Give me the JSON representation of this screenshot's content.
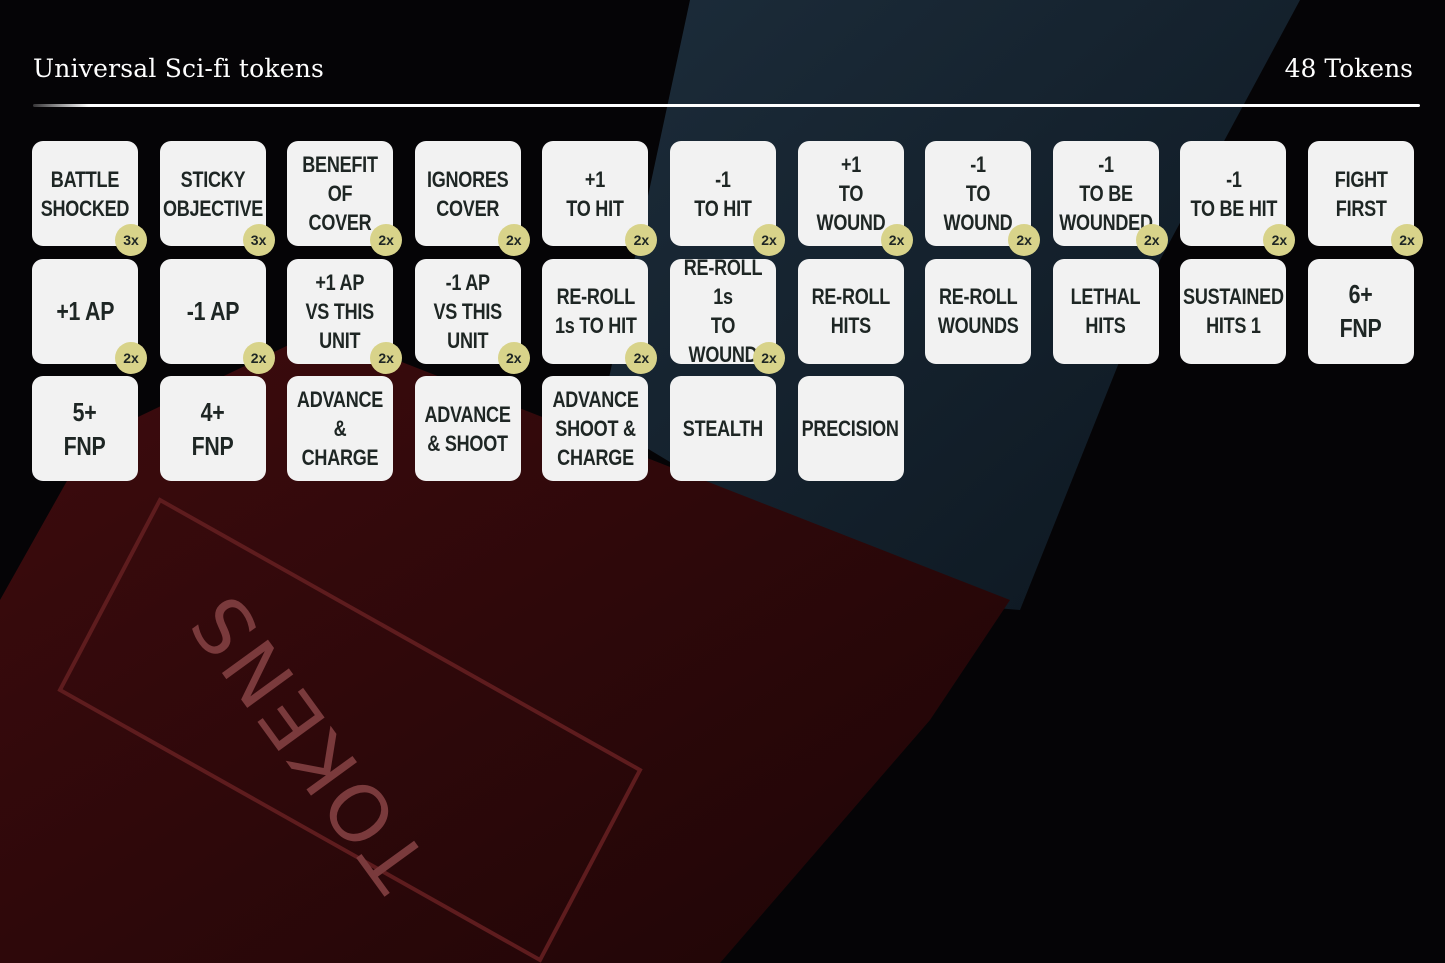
{
  "header": {
    "title": "Universal Sci-fi tokens",
    "count": "48 Tokens"
  },
  "background": {
    "word": "TOKENS"
  },
  "colors": {
    "token_bg": "#f2f2f2",
    "badge": "#d8d38a",
    "text": "#1e2624"
  },
  "tokens": [
    {
      "label": "BATTLE\nSHOCKED",
      "qty": "3x"
    },
    {
      "label": "STICKY\nOBJECTIVE",
      "qty": "3x"
    },
    {
      "label": "BENEFIT\nOF COVER",
      "qty": "2x"
    },
    {
      "label": "IGNORES\nCOVER",
      "qty": "2x"
    },
    {
      "label": "+1\nTO HIT",
      "qty": "2x"
    },
    {
      "label": "-1\nTO HIT",
      "qty": "2x"
    },
    {
      "label": "+1\nTO WOUND",
      "qty": "2x"
    },
    {
      "label": "-1\nTO WOUND",
      "qty": "2x"
    },
    {
      "label": "-1\nTO BE\nWOUNDED",
      "qty": "2x"
    },
    {
      "label": "-1\nTO BE HIT",
      "qty": "2x"
    },
    {
      "label": "FIGHT\nFIRST",
      "qty": "2x"
    },
    {
      "label": "+1 AP",
      "qty": "2x",
      "big": true
    },
    {
      "label": "-1 AP",
      "qty": "2x",
      "big": true
    },
    {
      "label": "+1 AP\nVS THIS\nUNIT",
      "qty": "2x"
    },
    {
      "label": "-1 AP\nVS THIS\nUNIT",
      "qty": "2x"
    },
    {
      "label": "RE-ROLL\n1s TO HIT",
      "qty": "2x"
    },
    {
      "label": "RE-ROLL 1s\nTO WOUND",
      "qty": "2x"
    },
    {
      "label": "RE-ROLL\nHITS",
      "qty": ""
    },
    {
      "label": "RE-ROLL\nWOUNDS",
      "qty": ""
    },
    {
      "label": "LETHAL\nHITS",
      "qty": ""
    },
    {
      "label": "SUSTAINED\nHITS 1",
      "qty": ""
    },
    {
      "label": "6+\nFNP",
      "qty": "",
      "big": true
    },
    {
      "label": "5+\nFNP",
      "qty": "",
      "big": true
    },
    {
      "label": "4+\nFNP",
      "qty": "",
      "big": true
    },
    {
      "label": "ADVANCE\n& CHARGE",
      "qty": ""
    },
    {
      "label": "ADVANCE\n& SHOOT",
      "qty": ""
    },
    {
      "label": "ADVANCE\nSHOOT &\nCHARGE",
      "qty": ""
    },
    {
      "label": "STEALTH",
      "qty": ""
    },
    {
      "label": "PRECISION",
      "qty": ""
    }
  ]
}
